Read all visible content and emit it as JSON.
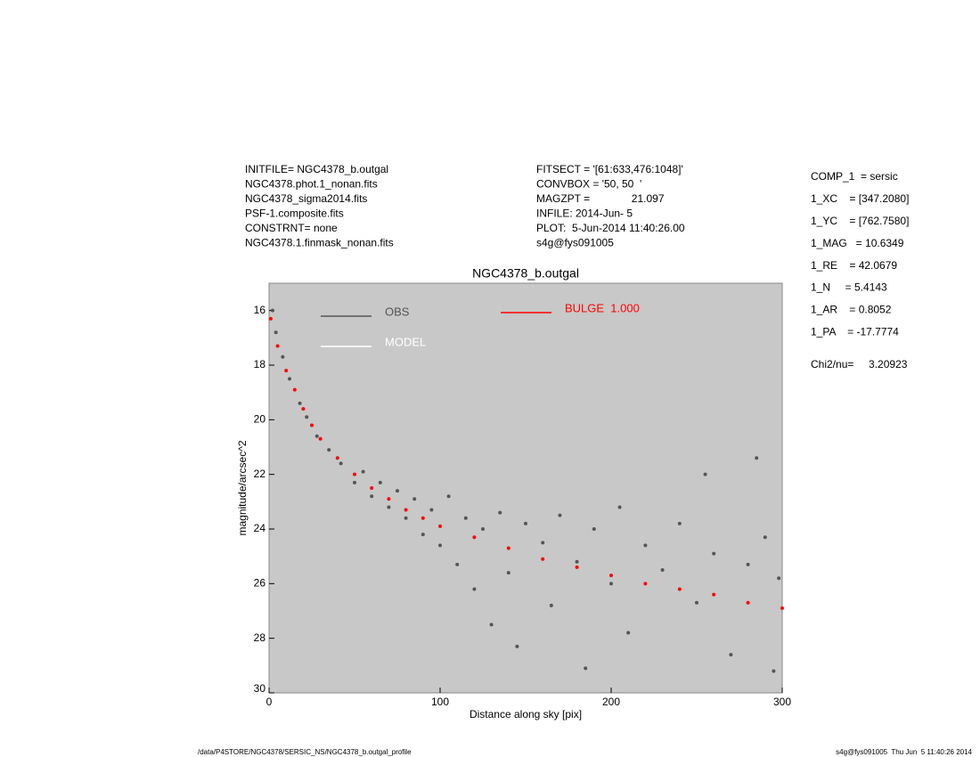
{
  "header": {
    "left": [
      "INITFILE= NGC4378_b.outgal",
      "NGC4378.phot.1_nonan.fits",
      "NGC4378_sigma2014.fits",
      "PSF-1.composite.fits",
      "CONSTRNT= none",
      "NGC4378.1.finmask_nonan.fits"
    ],
    "middle": [
      "FITSECT = '[61:633,476:1048]'",
      "CONVBOX = '50, 50  '",
      "MAGZPT =              21.097",
      "INFILE: 2014-Jun- 5",
      "PLOT:  5-Jun-2014 11:40:26.00",
      "s4g@fys091005"
    ],
    "params": [
      "COMP_1  = sersic",
      "1_XC    = [347.2080]",
      "1_YC    = [762.7580]",
      "1_MAG   = 10.6349",
      "1_RE    = 42.0679",
      "1_N     = 5.4143",
      "1_AR    = 0.8052",
      "1_PA    = -17.7774"
    ],
    "chi2": "Chi2/nu=     3.20923"
  },
  "footer": {
    "path": "/data/P4STORE/NGC4378/SERSIC_NS/NGC4378_b.outgal_profile",
    "stamp": "s4g@fys091005  Thu Jun  5 11:40:26 2014"
  },
  "chart_data": {
    "type": "scatter",
    "title": "NGC4378_b.outgal",
    "x_label": "Distance along sky [pix]",
    "y_label": "magnitude/arcsec^2",
    "xlim": [
      0,
      300
    ],
    "xticks": [
      0,
      100,
      200,
      300
    ],
    "ylim": [
      30,
      15
    ],
    "yticks": [
      16,
      18,
      20,
      22,
      24,
      26,
      28,
      30
    ],
    "background": "#c8c8c8",
    "series": [
      {
        "name": "OBS",
        "color": "#555555",
        "x": [
          2,
          4,
          8,
          12,
          18,
          22,
          28,
          35,
          42,
          50,
          55,
          60,
          65,
          70,
          75,
          80,
          85,
          90,
          95,
          100,
          105,
          110,
          115,
          120,
          125,
          130,
          135,
          140,
          145,
          150,
          160,
          165,
          170,
          180,
          185,
          190,
          200,
          205,
          210,
          220,
          230,
          240,
          250,
          255,
          260,
          270,
          280,
          285,
          290,
          295,
          298
        ],
        "values": [
          16.0,
          16.8,
          17.7,
          18.5,
          19.4,
          19.9,
          20.6,
          21.1,
          21.6,
          22.3,
          21.9,
          22.8,
          22.3,
          23.2,
          22.6,
          23.6,
          22.9,
          24.2,
          23.3,
          24.6,
          22.8,
          25.3,
          23.6,
          26.2,
          24.0,
          27.5,
          23.4,
          25.6,
          28.3,
          23.8,
          24.5,
          26.8,
          23.5,
          25.2,
          29.1,
          24.0,
          26.0,
          23.2,
          27.8,
          24.6,
          25.5,
          23.8,
          26.7,
          22.0,
          24.9,
          28.6,
          25.3,
          21.4,
          24.3,
          29.2,
          25.8
        ]
      },
      {
        "name": "MODEL",
        "color": "#ffffff",
        "x": [],
        "values": []
      },
      {
        "name": "BULGE  1.000",
        "color": "#ff0000",
        "x": [
          1,
          5,
          10,
          15,
          20,
          25,
          30,
          40,
          50,
          60,
          70,
          80,
          90,
          100,
          120,
          140,
          160,
          180,
          200,
          220,
          240,
          260,
          280,
          300
        ],
        "values": [
          16.3,
          17.3,
          18.2,
          18.9,
          19.6,
          20.2,
          20.7,
          21.4,
          22.0,
          22.5,
          22.9,
          23.3,
          23.6,
          23.9,
          24.3,
          24.7,
          25.1,
          25.4,
          25.7,
          26.0,
          26.2,
          26.4,
          26.7,
          26.9
        ]
      }
    ]
  }
}
